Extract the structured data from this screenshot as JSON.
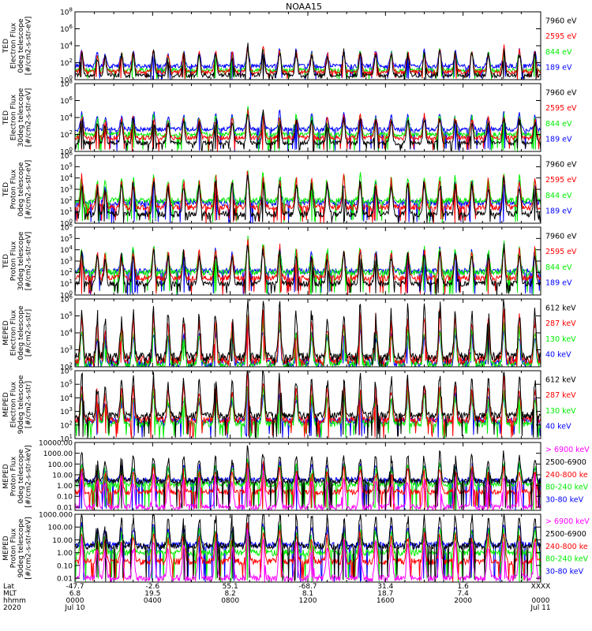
{
  "chart_data": {
    "type": "line",
    "title": "NOAA15",
    "x_axis": {
      "range_hours": [
        0,
        24
      ],
      "rows": [
        {
          "label": "Lat",
          "values": [
            "-47.7",
            "-2.6",
            "55.1",
            "-68.7",
            "31.4",
            "1.6",
            "XXXX"
          ]
        },
        {
          "label": "MLT",
          "values": [
            "6.8",
            "19.5",
            "8.2",
            "8.1",
            "18.7",
            "7.4",
            ""
          ]
        },
        {
          "label": "hhmm",
          "values": [
            "0000",
            "0400",
            "0800",
            "1200",
            "1600",
            "2000",
            "0000"
          ]
        },
        {
          "label": "2020",
          "values": [
            "Jul 10",
            "",
            "",
            "",
            "",
            "",
            "Jul 11"
          ]
        }
      ]
    },
    "panels": [
      {
        "ylabel": [
          "TED",
          "Electron Flux",
          "0deg telescope",
          "[#/cm2-s-str-eV]"
        ],
        "scale": "log",
        "ylim": [
          1,
          100000000.0
        ],
        "ticks": [
          {
            "base": "10",
            "exp": "0"
          },
          {
            "base": "10",
            "exp": "2"
          },
          {
            "base": "10",
            "exp": "4"
          },
          {
            "base": "10",
            "exp": "6"
          },
          {
            "base": "10",
            "exp": "8"
          }
        ],
        "series": [
          {
            "name": "7960 eV",
            "color": "#000000",
            "base": 0.5
          },
          {
            "name": "2595 eV",
            "color": "#ff0000",
            "base": 0.9
          },
          {
            "name": "844 eV",
            "color": "#00ee00",
            "base": 1.1
          },
          {
            "name": "189 eV",
            "color": "#0000ff",
            "base": 1.6
          }
        ]
      },
      {
        "ylabel": [
          "TED",
          "Electron Flux",
          "30deg telescope",
          "[#/cm2-s-str-eV]"
        ],
        "scale": "log",
        "ylim": [
          1,
          100000000.0
        ],
        "ticks": [
          {
            "base": "10",
            "exp": "0"
          },
          {
            "base": "10",
            "exp": "2"
          },
          {
            "base": "10",
            "exp": "4"
          },
          {
            "base": "10",
            "exp": "6"
          },
          {
            "base": "10",
            "exp": "8"
          }
        ],
        "series": [
          {
            "name": "7960 eV",
            "color": "#000000",
            "base": 1.0
          },
          {
            "name": "2595 eV",
            "color": "#ff0000",
            "base": 1.6
          },
          {
            "name": "844 eV",
            "color": "#00ee00",
            "base": 2.0
          },
          {
            "name": "189 eV",
            "color": "#0000ff",
            "base": 2.6
          }
        ]
      },
      {
        "ylabel": [
          "TED",
          "Proton Flux",
          "0deg telescope",
          "[#/cm2-s-str-eV]"
        ],
        "scale": "log",
        "ylim": [
          1,
          1000000.0
        ],
        "ticks": [
          {
            "base": "10",
            "exp": "0"
          },
          {
            "base": "10",
            "exp": "1"
          },
          {
            "base": "10",
            "exp": "2"
          },
          {
            "base": "10",
            "exp": "3"
          },
          {
            "base": "10",
            "exp": "4"
          },
          {
            "base": "10",
            "exp": "5"
          },
          {
            "base": "10",
            "exp": "6"
          }
        ],
        "series": [
          {
            "name": "7960 eV",
            "color": "#000000",
            "base": 0.8
          },
          {
            "name": "2595 eV",
            "color": "#ff0000",
            "base": 1.4
          },
          {
            "name": "844 eV",
            "color": "#00ee00",
            "base": 2.0
          },
          {
            "name": "189 eV",
            "color": "#0000ff",
            "base": 1.8
          }
        ]
      },
      {
        "ylabel": [
          "TED",
          "Proton Flux",
          "30deg telescope",
          "[#/cm2-s-str-eV]"
        ],
        "scale": "log",
        "ylim": [
          1,
          1000000.0
        ],
        "ticks": [
          {
            "base": "10",
            "exp": "0"
          },
          {
            "base": "10",
            "exp": "1"
          },
          {
            "base": "10",
            "exp": "2"
          },
          {
            "base": "10",
            "exp": "3"
          },
          {
            "base": "10",
            "exp": "4"
          },
          {
            "base": "10",
            "exp": "5"
          },
          {
            "base": "10",
            "exp": "6"
          }
        ],
        "series": [
          {
            "name": "7960 eV",
            "color": "#000000",
            "base": 1.0
          },
          {
            "name": "2595 eV",
            "color": "#ff0000",
            "base": 1.5
          },
          {
            "name": "844 eV",
            "color": "#00ee00",
            "base": 2.0
          },
          {
            "name": "189 eV",
            "color": "#0000ff",
            "base": 2.1
          }
        ]
      },
      {
        "ylabel": [
          "MEPED",
          "Electron Flux",
          "0deg telescope",
          "[#/cm2-s-str]"
        ],
        "scale": "log",
        "ylim": [
          100,
          1000000.0
        ],
        "ticks": [
          {
            "base": "10",
            "exp": "2"
          },
          {
            "base": "10",
            "exp": "3"
          },
          {
            "base": "10",
            "exp": "4"
          },
          {
            "base": "10",
            "exp": "5"
          },
          {
            "base": "10",
            "exp": "6"
          }
        ],
        "series": [
          {
            "name": "612 keV",
            "color": "#000000",
            "base": 2.6
          },
          {
            "name": "287 keV",
            "color": "#ff0000",
            "base": 2.4
          },
          {
            "name": "130 keV",
            "color": "#00ee00",
            "base": 2.15
          },
          {
            "name": "40 keV",
            "color": "#0000ff",
            "base": 2.2
          }
        ]
      },
      {
        "ylabel": [
          "MEPED",
          "Electron Flux",
          "90deg telescope",
          "[#/cm2-s-str]"
        ],
        "scale": "log",
        "ylim": [
          10,
          1000000.0
        ],
        "ticks": [
          {
            "base": "10",
            "exp": "1"
          },
          {
            "base": "10",
            "exp": "2"
          },
          {
            "base": "10",
            "exp": "3"
          },
          {
            "base": "10",
            "exp": "4"
          },
          {
            "base": "10",
            "exp": "5"
          },
          {
            "base": "10",
            "exp": "6"
          }
        ],
        "series": [
          {
            "name": "612 keV",
            "color": "#000000",
            "base": 2.7
          },
          {
            "name": "287 keV",
            "color": "#ff0000",
            "base": 2.4
          },
          {
            "name": "130 keV",
            "color": "#00ee00",
            "base": 2.1
          },
          {
            "name": "40 keV",
            "color": "#0000ff",
            "base": 2.3
          }
        ]
      },
      {
        "ylabel": [
          "MEPED",
          "Proton Flux",
          "0deg telescope",
          "[#/cm2-s-str-keV]"
        ],
        "scale": "log",
        "ylim": [
          0.005,
          10000
        ],
        "ticks": [
          {
            "label": "0.01",
            "v": 0.01
          },
          {
            "label": "0.10",
            "v": 0.1
          },
          {
            "label": "1.00",
            "v": 1
          },
          {
            "label": "10.00",
            "v": 10
          },
          {
            "label": "100.00",
            "v": 100
          },
          {
            "label": "1000.00",
            "v": 1000
          },
          {
            "label": "10000.00",
            "v": 10000
          }
        ],
        "series": [
          {
            "name": "> 6900 keV",
            "color": "#ff00ff",
            "base": -2.0
          },
          {
            "name": "2500-6900",
            "color": "#000000",
            "base": 0.4
          },
          {
            "name": "240-800 ke",
            "color": "#ff0000",
            "base": -0.6
          },
          {
            "name": "80-240 keV",
            "color": "#00ee00",
            "base": 0.1
          },
          {
            "name": "30-80 keV",
            "color": "#0000ff",
            "base": 0.5
          }
        ]
      },
      {
        "ylabel": [
          "MEPED",
          "Proton Flux",
          "90deg telescope",
          "[#/cm2-s-str-keV]"
        ],
        "scale": "log",
        "ylim": [
          0.005,
          1000
        ],
        "ticks": [
          {
            "label": "0.01",
            "v": 0.01
          },
          {
            "label": "0.10",
            "v": 0.1
          },
          {
            "label": "1.00",
            "v": 1
          },
          {
            "label": "10.00",
            "v": 10
          },
          {
            "label": "100.00",
            "v": 100
          },
          {
            "label": "1000.000",
            "v": 1000
          }
        ],
        "series": [
          {
            "name": "> 6900 keV",
            "color": "#ff00ff",
            "base": -2.0
          },
          {
            "name": "2500-6900",
            "color": "#000000",
            "base": 0.5
          },
          {
            "name": "240-800 ke",
            "color": "#ff0000",
            "base": -0.7
          },
          {
            "name": "80-240 keV",
            "color": "#00ee00",
            "base": 0.0
          },
          {
            "name": "30-80 keV",
            "color": "#0000ff",
            "base": 0.6
          }
        ]
      }
    ],
    "pass_centers_hours": [
      0.35,
      1.15,
      1.55,
      2.4,
      3.0,
      4.05,
      4.8,
      5.6,
      6.4,
      7.25,
      8.1,
      8.9,
      9.7,
      10.55,
      11.4,
      12.2,
      13.0,
      13.85,
      14.7,
      15.5,
      16.3,
      17.15,
      18.0,
      18.8,
      19.6,
      20.45,
      21.3,
      22.1,
      22.9,
      23.7
    ],
    "pass_peaks_log": [
      3.2,
      2.6,
      2.4,
      2.8,
      3.0,
      3.4,
      2.7,
      3.0,
      2.8,
      3.2,
      2.9,
      4.2,
      3.8,
      3.5,
      3.1,
      3.0,
      2.8,
      3.2,
      3.3,
      3.0,
      2.9,
      3.1,
      3.2,
      3.4,
      3.0,
      3.1,
      2.9,
      3.6,
      3.2,
      3.0
    ]
  }
}
